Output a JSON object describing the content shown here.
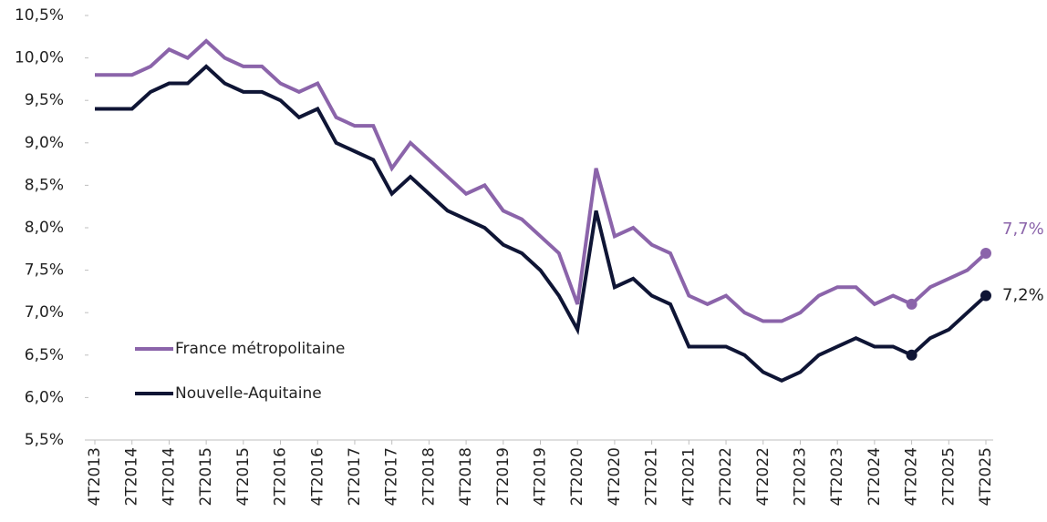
{
  "chart_data": {
    "type": "line",
    "categories": [
      "4T2013",
      null,
      "2T2014",
      null,
      "4T2014",
      null,
      "2T2015",
      null,
      "4T2015",
      null,
      "2T2016",
      null,
      "4T2016",
      null,
      "2T2017",
      null,
      "4T2017",
      null,
      "2T2018",
      null,
      "4T2018",
      null,
      "2T2019",
      null,
      "4T2019",
      null,
      "2T2020",
      null,
      "4T2020",
      null,
      "2T2021",
      null,
      "4T2021",
      null,
      "2T2022",
      null,
      "4T2022",
      null,
      "2T2023",
      null,
      "4T2023",
      null,
      "2T2024",
      null,
      "4T2024",
      null,
      "2T2025",
      null,
      "4T2025"
    ],
    "series": [
      {
        "name": "France métropolitaine",
        "color": "#8b64aa",
        "values": [
          9.8,
          9.8,
          9.8,
          9.9,
          10.1,
          10.0,
          10.2,
          10.0,
          9.9,
          9.9,
          9.7,
          9.6,
          9.7,
          9.3,
          9.2,
          9.2,
          8.7,
          9.0,
          8.8,
          8.6,
          8.4,
          8.5,
          8.2,
          8.1,
          7.9,
          7.7,
          7.1,
          8.7,
          7.9,
          8.0,
          7.8,
          7.7,
          7.2,
          7.1,
          7.2,
          7.0,
          6.9,
          6.9,
          7.0,
          7.2,
          7.3,
          7.3,
          7.1,
          7.2,
          7.1,
          7.3,
          7.4,
          7.5,
          7.7
        ],
        "value_labels": [
          null,
          null,
          null,
          null,
          null,
          null,
          null,
          null,
          null,
          null,
          null,
          null,
          null,
          null,
          null,
          null,
          null,
          null,
          null,
          null,
          null,
          null,
          null,
          null,
          null,
          null,
          null,
          null,
          null,
          null,
          null,
          null,
          null,
          null,
          null,
          null,
          null,
          null,
          null,
          null,
          null,
          null,
          null,
          null,
          null,
          null,
          null,
          null,
          "7,7%"
        ]
      },
      {
        "name": "Nouvelle-Aquitaine",
        "color": "#0f1535",
        "values": [
          9.4,
          9.4,
          9.4,
          9.6,
          9.7,
          9.7,
          9.9,
          9.7,
          9.6,
          9.6,
          9.5,
          9.3,
          9.4,
          9.0,
          8.9,
          8.8,
          8.4,
          8.6,
          8.4,
          8.2,
          8.1,
          8.0,
          7.8,
          7.7,
          7.5,
          7.2,
          6.8,
          8.2,
          7.3,
          7.4,
          7.2,
          7.1,
          6.6,
          6.6,
          6.6,
          6.5,
          6.3,
          6.2,
          6.3,
          6.5,
          6.6,
          6.7,
          6.6,
          6.6,
          6.5,
          6.7,
          6.8,
          7.0,
          7.2
        ],
        "value_labels": [
          null,
          null,
          null,
          null,
          null,
          null,
          null,
          null,
          null,
          null,
          null,
          null,
          null,
          null,
          null,
          null,
          null,
          null,
          null,
          null,
          null,
          null,
          null,
          null,
          null,
          null,
          null,
          null,
          null,
          null,
          null,
          null,
          null,
          null,
          null,
          null,
          null,
          null,
          null,
          null,
          null,
          null,
          null,
          null,
          null,
          null,
          null,
          null,
          "7,2%"
        ]
      }
    ],
    "markers": [
      44,
      48
    ],
    "ylim": [
      5.5,
      10.5
    ],
    "yticks": [
      {
        "value": 5.5,
        "label": "5,5%"
      },
      {
        "value": 6.0,
        "label": "6,0%"
      },
      {
        "value": 6.5,
        "label": "6,5%"
      },
      {
        "value": 7.0,
        "label": "7,0%"
      },
      {
        "value": 7.5,
        "label": "7,5%"
      },
      {
        "value": 8.0,
        "label": "8,0%"
      },
      {
        "value": 8.5,
        "label": "8,5%"
      },
      {
        "value": 9.0,
        "label": "9,0%"
      },
      {
        "value": 9.5,
        "label": "9,5%"
      },
      {
        "value": 10.0,
        "label": "10,0%"
      },
      {
        "value": 10.5,
        "label": "10,5%"
      }
    ],
    "grid": false,
    "legend": "left"
  }
}
